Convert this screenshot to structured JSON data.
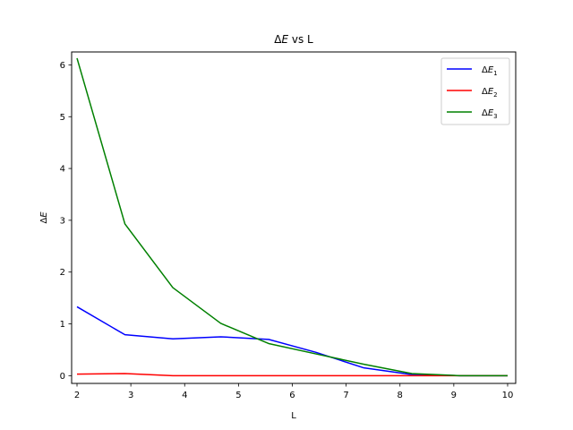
{
  "chart_data": {
    "type": "line",
    "title": "ΔE vs L",
    "title_parts": {
      "prefix": "Δ",
      "symbol": "E",
      "suffix": " vs L"
    },
    "xlabel": "L",
    "ylabel": "ΔE",
    "ylabel_parts": {
      "prefix": "Δ",
      "symbol": "E"
    },
    "xlim": [
      1.9,
      10.15
    ],
    "ylim": [
      -0.15,
      6.25
    ],
    "xticks": [
      2,
      3,
      4,
      5,
      6,
      7,
      8,
      9,
      10
    ],
    "yticks": [
      0,
      1,
      2,
      3,
      4,
      5,
      6
    ],
    "grid": false,
    "legend_position": "top-right",
    "x": [
      2.0,
      2.89,
      3.78,
      4.67,
      5.56,
      6.44,
      7.33,
      8.22,
      9.11,
      10.0
    ],
    "series": [
      {
        "name": "ΔE1",
        "label_parts": {
          "prefix": "Δ",
          "symbol": "E",
          "sub": "1"
        },
        "color": "#0000ff",
        "values": [
          1.33,
          0.79,
          0.71,
          0.75,
          0.7,
          0.45,
          0.15,
          0.02,
          0.0,
          0.0
        ]
      },
      {
        "name": "ΔE2",
        "label_parts": {
          "prefix": "Δ",
          "symbol": "E",
          "sub": "2"
        },
        "color": "#ff0000",
        "values": [
          0.03,
          0.04,
          0.0,
          0.0,
          0.0,
          0.0,
          0.0,
          0.0,
          0.0,
          0.0
        ]
      },
      {
        "name": "ΔE3",
        "label_parts": {
          "prefix": "Δ",
          "symbol": "E",
          "sub": "3"
        },
        "color": "#008000",
        "values": [
          6.13,
          2.93,
          1.7,
          1.01,
          0.62,
          0.42,
          0.22,
          0.04,
          0.0,
          0.0
        ]
      }
    ]
  }
}
